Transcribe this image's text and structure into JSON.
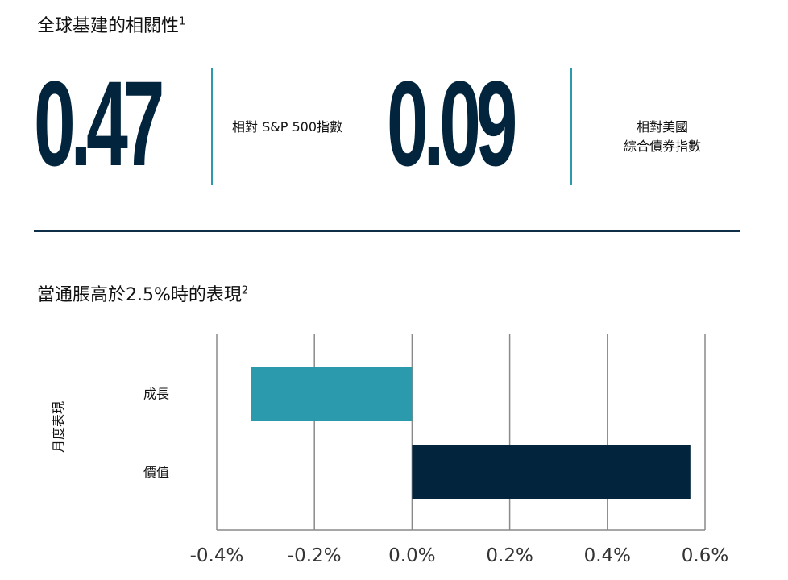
{
  "section1": {
    "title": "全球基建的相關性",
    "title_sup": "1",
    "stats": [
      {
        "value": "0.47",
        "label": "相對 S&P 500指數"
      },
      {
        "value": "0.09",
        "label_lines": [
          "相對美國",
          "綜合債券指數"
        ]
      }
    ]
  },
  "section2": {
    "title": "當通脹高於2.5%時的表現",
    "title_sup": "2"
  },
  "chart_data": {
    "type": "bar",
    "orientation": "horizontal",
    "categories": [
      "成長",
      "價值"
    ],
    "values": [
      -0.33,
      0.57
    ],
    "colors": [
      "#2b9aac",
      "#02243c"
    ],
    "ylabel": "月度表現",
    "xlabel": "",
    "xlim": [
      -0.4,
      0.6
    ],
    "xticks": [
      -0.4,
      -0.2,
      0.0,
      0.2,
      0.4,
      0.6
    ],
    "xtick_labels": [
      "-0.4%",
      "-0.2%",
      "0.0%",
      "0.2%",
      "0.4%",
      "0.6%"
    ],
    "grid": true
  }
}
